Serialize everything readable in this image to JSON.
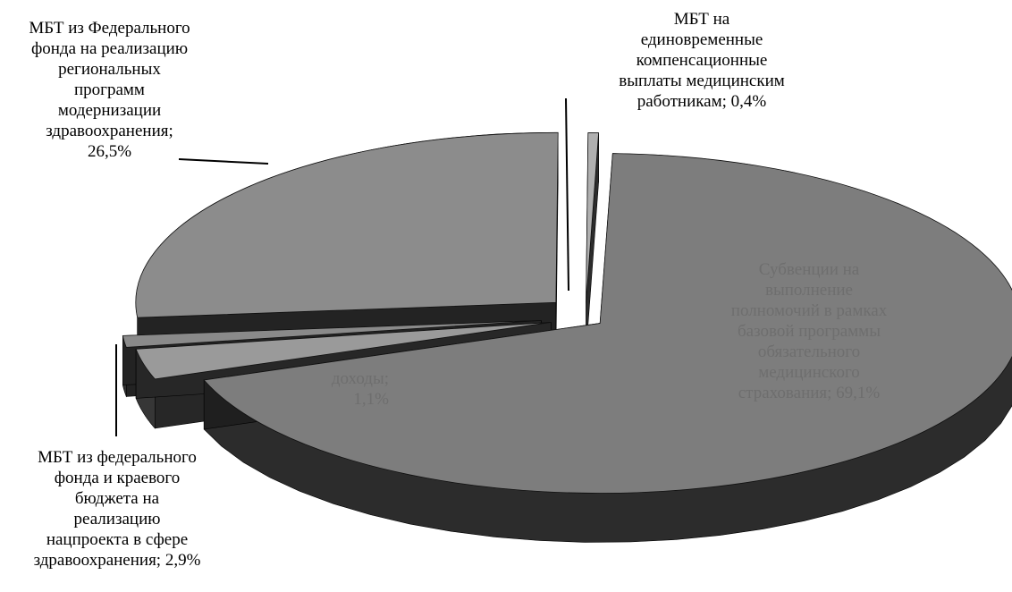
{
  "chart_data": {
    "type": "pie",
    "title": "",
    "slices": [
      {
        "label": "Субвенции на выполнение полномочий в рамках базовой программы обязательного медицинского страхования",
        "value": 69.1,
        "value_label": "69,1%",
        "display": "Субвенции на\nвыполнение\nполномочий в рамках\nбазовой программы\nобязательного\nмедицинского\nстрахования; 69,1%",
        "color": "#7d7d7d"
      },
      {
        "label": "МБТ из федерального фонда и краевого бюджета на реализацию нацпроекта в сфере здравоохранения",
        "value": 2.9,
        "value_label": "2,9%",
        "display": "МБТ из федерального\nфонда и краевого\nбюджета на\nреализацию\nнацпроекта в сфере\nздравоохранения; 2,9%",
        "color": "#9a9a9a"
      },
      {
        "label": "Прочие доходы",
        "value": 1.1,
        "value_label": "1,1%",
        "display": "доходы;\n1,1%",
        "color": "#8a8a8a"
      },
      {
        "label": "МБТ из Федерального фонда на реализацию региональных программ модернизации здравоохранения",
        "value": 26.5,
        "value_label": "26,5%",
        "display": "МБТ из Федерального\nфонда на реализацию\nрегиональных\nпрограмм\nмодернизации\nздравоохранения;\n26,5%",
        "color": "#8c8c8c"
      },
      {
        "label": "МБТ на единовременные компенсационные выплаты медицинским работникам",
        "value": 0.4,
        "value_label": "0,4%",
        "display": "МБТ на\nединовременные\nкомпенсационные\nвыплаты медицинским\nработникам; 0,4%",
        "color": "#b0b0b0"
      }
    ],
    "legend": "none",
    "style": "3d-exploded"
  }
}
